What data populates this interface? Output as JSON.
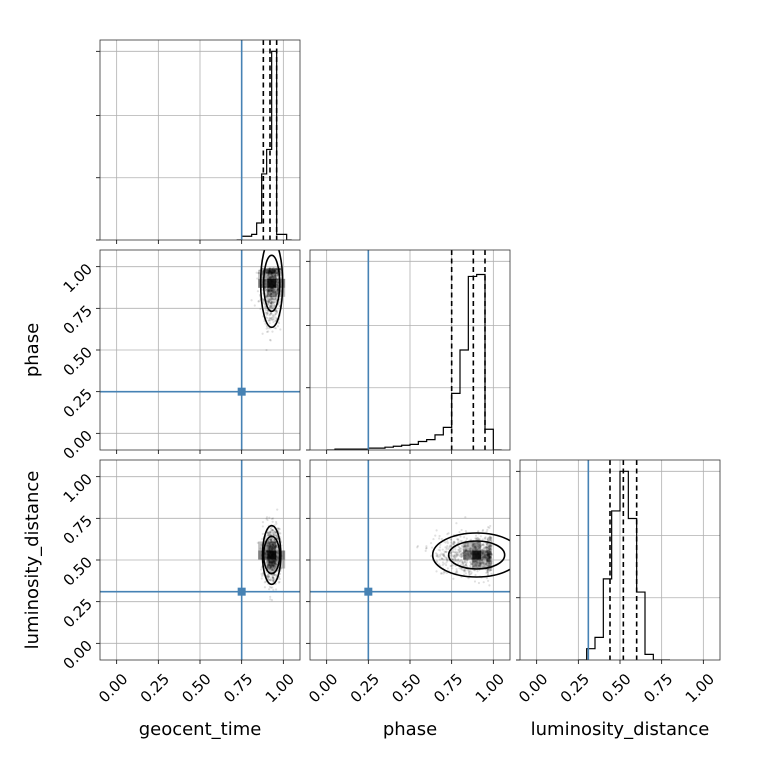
{
  "colors": {
    "truth": "#4682b4",
    "hist": "#000000",
    "grid": "#b0b0b0"
  },
  "chart_data": {
    "type": "corner",
    "parameters": [
      "geocent_time",
      "phase",
      "luminosity_distance"
    ],
    "axis_range": [
      -0.1,
      1.1
    ],
    "ticks": [
      0.0,
      0.25,
      0.5,
      0.75,
      1.0
    ],
    "tick_labels": [
      "0.00",
      "0.25",
      "0.50",
      "0.75",
      "1.00"
    ],
    "grid": true,
    "truths": {
      "geocent_time": 0.75,
      "phase": 0.25,
      "luminosity_distance": 0.31
    },
    "quantiles": {
      "geocent_time": [
        0.88,
        0.92,
        0.96
      ],
      "phase": [
        0.75,
        0.88,
        0.95
      ],
      "luminosity_distance": [
        0.44,
        0.52,
        0.6
      ]
    },
    "histograms": {
      "geocent_time": {
        "bin_edges": [
          0.72,
          0.75,
          0.78,
          0.81,
          0.84,
          0.87,
          0.9,
          0.93,
          0.96,
          0.99,
          1.02,
          1.05
        ],
        "counts": [
          0.0,
          0.02,
          0.02,
          0.03,
          0.09,
          0.35,
          0.48,
          1.0,
          0.03,
          0.03,
          0.0
        ],
        "ylim": [
          0,
          1.06
        ]
      },
      "phase": {
        "bin_edges": [
          0.0,
          0.05,
          0.1,
          0.15,
          0.2,
          0.25,
          0.3,
          0.35,
          0.4,
          0.45,
          0.5,
          0.55,
          0.6,
          0.65,
          0.7,
          0.75,
          0.8,
          0.85,
          0.9,
          0.95,
          1.0,
          1.05
        ],
        "counts": [
          0.0,
          0.005,
          0.005,
          0.005,
          0.005,
          0.01,
          0.01,
          0.015,
          0.02,
          0.025,
          0.03,
          0.045,
          0.055,
          0.08,
          0.12,
          0.3,
          0.53,
          0.92,
          0.93,
          0.11,
          0.0
        ],
        "ylim": [
          0,
          1.06
        ]
      },
      "luminosity_distance": {
        "bin_edges": [
          0.25,
          0.3,
          0.35,
          0.4,
          0.45,
          0.5,
          0.55,
          0.6,
          0.65,
          0.7,
          0.75,
          0.8
        ],
        "counts": [
          0.0,
          0.06,
          0.12,
          0.43,
          0.79,
          1.0,
          0.75,
          0.36,
          0.03,
          0.0,
          0.0
        ],
        "ylim": [
          0,
          1.06
        ]
      }
    },
    "panels_2d": [
      {
        "x": "geocent_time",
        "y": "phase",
        "center": [
          0.93,
          0.9
        ],
        "spread": [
          0.03,
          0.12
        ]
      },
      {
        "x": "geocent_time",
        "y": "luminosity_distance",
        "center": [
          0.93,
          0.53
        ],
        "spread": [
          0.025,
          0.08
        ]
      },
      {
        "x": "phase",
        "y": "luminosity_distance",
        "center": [
          0.9,
          0.53
        ],
        "spread": [
          0.12,
          0.06
        ]
      }
    ]
  }
}
